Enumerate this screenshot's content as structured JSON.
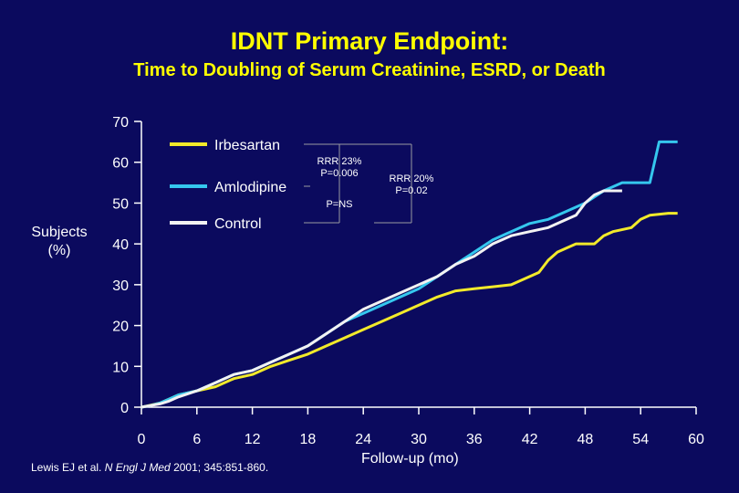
{
  "header": {
    "title": "IDNT Primary Endpoint:",
    "subtitle": "Time to Doubling of Serum Creatinine, ESRD, or Death"
  },
  "citation": {
    "authors": "Lewis EJ et al. ",
    "journal": "N Engl J Med",
    "details": " 2001; 345:851-860."
  },
  "colors": {
    "background": "#0b0a5e",
    "title": "#ffff00",
    "irbesartan": "#f2ea2a",
    "amlodipine": "#35c7ee",
    "control": "#f2f2f2",
    "axis": "#ffffff"
  },
  "chart_data": {
    "type": "line",
    "xlabel": "Follow-up (mo)",
    "ylabel_line1": "Subjects",
    "ylabel_line2": "(%)",
    "xlim": [
      0,
      60
    ],
    "ylim": [
      0,
      70
    ],
    "xticks": [
      0,
      6,
      12,
      18,
      24,
      30,
      36,
      42,
      48,
      54,
      60
    ],
    "yticks": [
      0,
      10,
      20,
      30,
      40,
      50,
      60,
      70
    ],
    "legend_position": "top-left",
    "series": [
      {
        "name": "Irbesartan",
        "color": "#f2ea2a",
        "points": [
          [
            0,
            0
          ],
          [
            1,
            0.5
          ],
          [
            2,
            1
          ],
          [
            3,
            2
          ],
          [
            4,
            3
          ],
          [
            6,
            4
          ],
          [
            8,
            5
          ],
          [
            10,
            7
          ],
          [
            12,
            8
          ],
          [
            14,
            10
          ],
          [
            16,
            11.5
          ],
          [
            18,
            13
          ],
          [
            20,
            15
          ],
          [
            22,
            17
          ],
          [
            24,
            19
          ],
          [
            26,
            21
          ],
          [
            28,
            23
          ],
          [
            30,
            25
          ],
          [
            32,
            27
          ],
          [
            34,
            28.5
          ],
          [
            36,
            29
          ],
          [
            38,
            29.5
          ],
          [
            40,
            30
          ],
          [
            42,
            32
          ],
          [
            43,
            33
          ],
          [
            44,
            36
          ],
          [
            45,
            38
          ],
          [
            46,
            39
          ],
          [
            47,
            40
          ],
          [
            49,
            40
          ],
          [
            50,
            42
          ],
          [
            51,
            43
          ],
          [
            53,
            44
          ],
          [
            54,
            46
          ],
          [
            55,
            47
          ],
          [
            57,
            47.5
          ],
          [
            58,
            47.5
          ]
        ]
      },
      {
        "name": "Amlodipine",
        "color": "#35c7ee",
        "points": [
          [
            0,
            0
          ],
          [
            1,
            0.4
          ],
          [
            2,
            1
          ],
          [
            3,
            2
          ],
          [
            4,
            3
          ],
          [
            6,
            4
          ],
          [
            8,
            6
          ],
          [
            10,
            8
          ],
          [
            12,
            9
          ],
          [
            14,
            11
          ],
          [
            16,
            13
          ],
          [
            18,
            15
          ],
          [
            20,
            18
          ],
          [
            22,
            21
          ],
          [
            24,
            23
          ],
          [
            26,
            25
          ],
          [
            28,
            27
          ],
          [
            30,
            29
          ],
          [
            32,
            32
          ],
          [
            34,
            35
          ],
          [
            36,
            38
          ],
          [
            38,
            41
          ],
          [
            40,
            43
          ],
          [
            42,
            45
          ],
          [
            44,
            46
          ],
          [
            46,
            48
          ],
          [
            48,
            50
          ],
          [
            50,
            53
          ],
          [
            52,
            55
          ],
          [
            54,
            55
          ],
          [
            55,
            55
          ],
          [
            56,
            65
          ],
          [
            58,
            65
          ]
        ]
      },
      {
        "name": "Control",
        "color": "#f2f2f2",
        "points": [
          [
            0,
            0
          ],
          [
            1,
            0.4
          ],
          [
            2,
            0.8
          ],
          [
            3,
            1.5
          ],
          [
            4,
            2.5
          ],
          [
            6,
            4
          ],
          [
            8,
            6
          ],
          [
            10,
            8
          ],
          [
            12,
            9
          ],
          [
            14,
            11
          ],
          [
            16,
            13
          ],
          [
            18,
            15
          ],
          [
            20,
            18
          ],
          [
            22,
            21
          ],
          [
            24,
            24
          ],
          [
            26,
            26
          ],
          [
            28,
            28
          ],
          [
            30,
            30
          ],
          [
            32,
            32
          ],
          [
            34,
            35
          ],
          [
            36,
            37
          ],
          [
            38,
            40
          ],
          [
            40,
            42
          ],
          [
            42,
            43
          ],
          [
            44,
            44
          ],
          [
            45,
            45
          ],
          [
            46,
            46
          ],
          [
            47,
            47
          ],
          [
            48,
            50
          ],
          [
            49,
            52
          ],
          [
            50,
            53
          ],
          [
            51,
            53
          ],
          [
            52,
            53
          ]
        ]
      }
    ],
    "annotations": [
      {
        "lines": [
          "RRR 23%",
          "P=0.006"
        ],
        "comparison": "Irbesartan vs Control"
      },
      {
        "lines": [
          "RRR 20%",
          "P=0.02"
        ],
        "comparison": "Irbesartan vs Amlodipine"
      },
      {
        "lines": [
          "P=NS"
        ],
        "comparison": "Amlodipine vs Control"
      }
    ]
  }
}
